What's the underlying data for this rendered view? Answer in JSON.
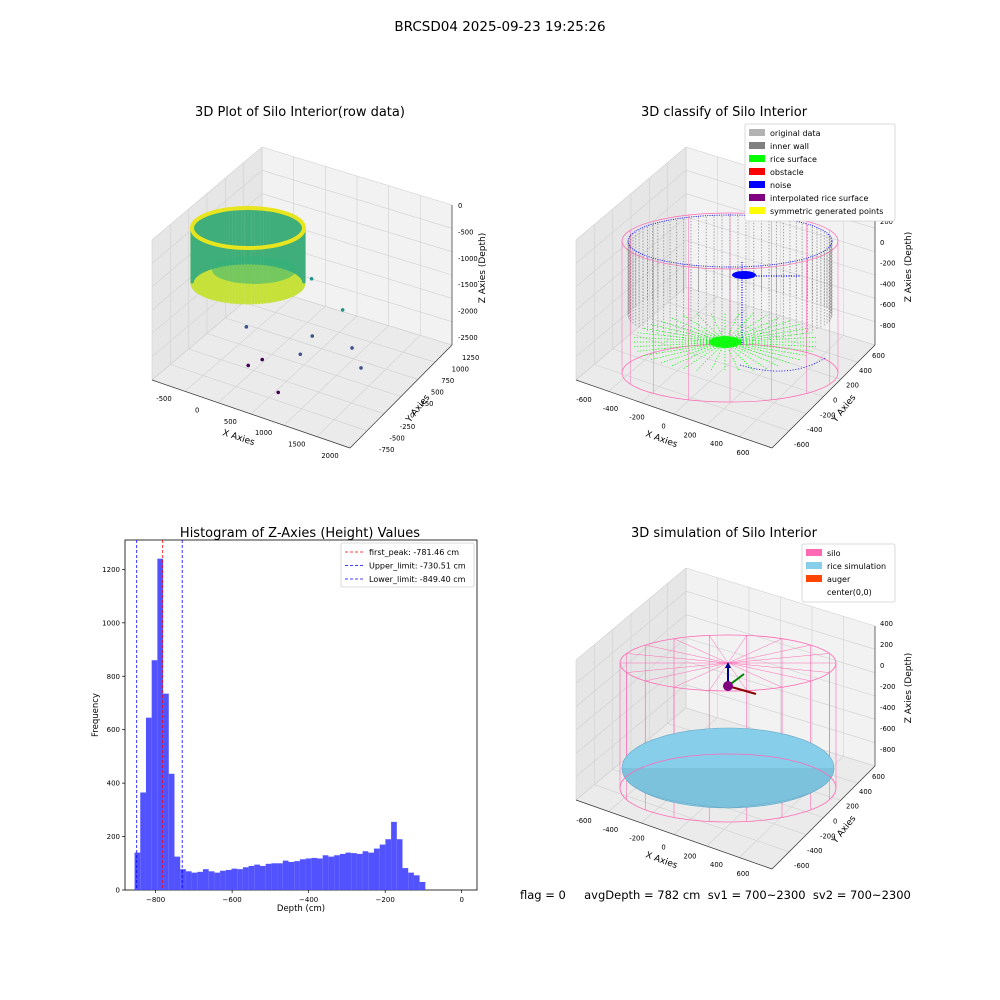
{
  "figure": {
    "title": "BRCSD04 2025-09-23 19:25:26",
    "footer": "flag = 0     avgDepth = 782 cm  sv1 = 700~2300  sv2 = 700~2300"
  },
  "chart_data": [
    {
      "type": "scatter",
      "title": "3D Plot of Silo Interior(row data)",
      "xlabel": "X Axies",
      "ylabel": "Y Axies",
      "zlabel": "Z Axies (Depth)",
      "x_ticks": [
        "-500",
        "0",
        "500",
        "1000",
        "1500",
        "2000"
      ],
      "y_ticks": [
        "-750",
        "-500",
        "-250",
        "0",
        "250",
        "500",
        "750",
        "1000",
        "1250"
      ],
      "z_ticks": [
        "0",
        "-500",
        "-1000",
        "-1500",
        "-2000",
        "-2500"
      ],
      "xlim": [
        -700,
        2100
      ],
      "ylim": [
        -800,
        1300
      ],
      "zlim": [
        -2600,
        50
      ],
      "colormap": "viridis",
      "grid": true,
      "outlier_points": [
        {
          "x": 1500,
          "y": 100,
          "z": -1800
        },
        {
          "x": 1700,
          "y": 0,
          "z": -2000
        },
        {
          "x": 900,
          "y": -100,
          "z": -2000
        },
        {
          "x": 1000,
          "y": 0,
          "z": -1700
        },
        {
          "x": 1150,
          "y": 400,
          "z": -1500
        },
        {
          "x": 700,
          "y": 400,
          "z": -1100
        },
        {
          "x": 200,
          "y": -200,
          "z": -1700
        },
        {
          "x": 500,
          "y": -300,
          "z": -2100
        },
        {
          "x": 300,
          "y": -300,
          "z": -2300
        },
        {
          "x": 800,
          "y": -400,
          "z": -2500
        }
      ]
    },
    {
      "type": "scatter",
      "title": "3D classify of Silo Interior",
      "xlabel": "X Axies",
      "ylabel": "Y Axies",
      "zlabel": "Z Axies (Depth)",
      "x_ticks": [
        "-600",
        "-400",
        "-200",
        "0",
        "200",
        "400",
        "600"
      ],
      "y_ticks": [
        "-600",
        "-400",
        "-200",
        "0",
        "200",
        "400",
        "600"
      ],
      "z_ticks": [
        "200",
        "0",
        "-200",
        "-400",
        "-600",
        "-800"
      ],
      "zlim": [
        -900,
        300
      ],
      "legend": {
        "position": "upper right",
        "entries": [
          {
            "label": "original data",
            "color": "#b3b3b3"
          },
          {
            "label": "inner wall",
            "color": "#808080"
          },
          {
            "label": "rice surface",
            "color": "#00ff00"
          },
          {
            "label": "obstacle",
            "color": "#ff0000"
          },
          {
            "label": "noise",
            "color": "#0000ff"
          },
          {
            "label": "interpolated rice surface",
            "color": "#800080"
          },
          {
            "label": "symmetric generated points",
            "color": "#ffff00"
          }
        ]
      },
      "grid": true
    },
    {
      "type": "bar",
      "title": "Histogram of Z-Axies (Height) Values",
      "xlabel": "Depth (cm)",
      "ylabel": "Frequency",
      "xlim": [
        -880,
        40
      ],
      "ylim": [
        0,
        1310
      ],
      "x_ticks": [
        -800,
        -600,
        -400,
        -200,
        0
      ],
      "y_ticks": [
        0,
        200,
        400,
        600,
        800,
        1000,
        1200
      ],
      "bin_width": 14.9,
      "bin_start": -855,
      "values": [
        140,
        365,
        645,
        860,
        1240,
        735,
        435,
        125,
        78,
        70,
        65,
        68,
        78,
        70,
        65,
        72,
        75,
        80,
        78,
        85,
        90,
        95,
        90,
        98,
        100,
        100,
        110,
        105,
        108,
        115,
        118,
        120,
        118,
        130,
        125,
        130,
        135,
        140,
        138,
        135,
        145,
        140,
        155,
        170,
        190,
        255,
        190,
        82,
        65,
        55,
        30
      ],
      "bar_color": "#4c4cff",
      "lines": [
        {
          "label": "first_peak: -781.46 cm",
          "value": -781.46,
          "color": "#ff0000"
        },
        {
          "label": "Upper_limit: -730.51 cm",
          "value": -730.51,
          "color": "#0000ff"
        },
        {
          "label": "Lower_limit: -849.40 cm",
          "value": -849.4,
          "color": "#0000ff"
        }
      ],
      "legend": {
        "position": "upper right"
      }
    },
    {
      "type": "scatter",
      "title": "3D simulation of Silo Interior",
      "xlabel": "X Axies",
      "ylabel": "Y Axies",
      "zlabel": "Z Axies (Depth)",
      "x_ticks": [
        "-600",
        "-400",
        "-200",
        "0",
        "200",
        "400",
        "600"
      ],
      "y_ticks": [
        "-600",
        "-400",
        "-200",
        "0",
        "200",
        "400",
        "600"
      ],
      "z_ticks": [
        "400",
        "200",
        "0",
        "-200",
        "-400",
        "-600",
        "-800"
      ],
      "zlim": [
        -900,
        450
      ],
      "legend": {
        "position": "upper right",
        "entries": [
          {
            "label": "silo",
            "color": "#ff69b4"
          },
          {
            "label": "rice simulation",
            "color": "#87ceeb"
          },
          {
            "label": "auger",
            "color": "#ff4500"
          },
          {
            "label": "center(0,0)",
            "color": "#ffffff"
          }
        ]
      },
      "grid": true
    }
  ],
  "colors": {
    "pane": "#f2f2f2",
    "pane_side": "#e6e6e6",
    "grid": "#d0d0d0",
    "silo_pink": "#ff69b4",
    "rice_blue": "#87ceeb",
    "inner_wall": "#808080",
    "rice_green": "#00ff00",
    "noise_blue": "#0000ff"
  }
}
